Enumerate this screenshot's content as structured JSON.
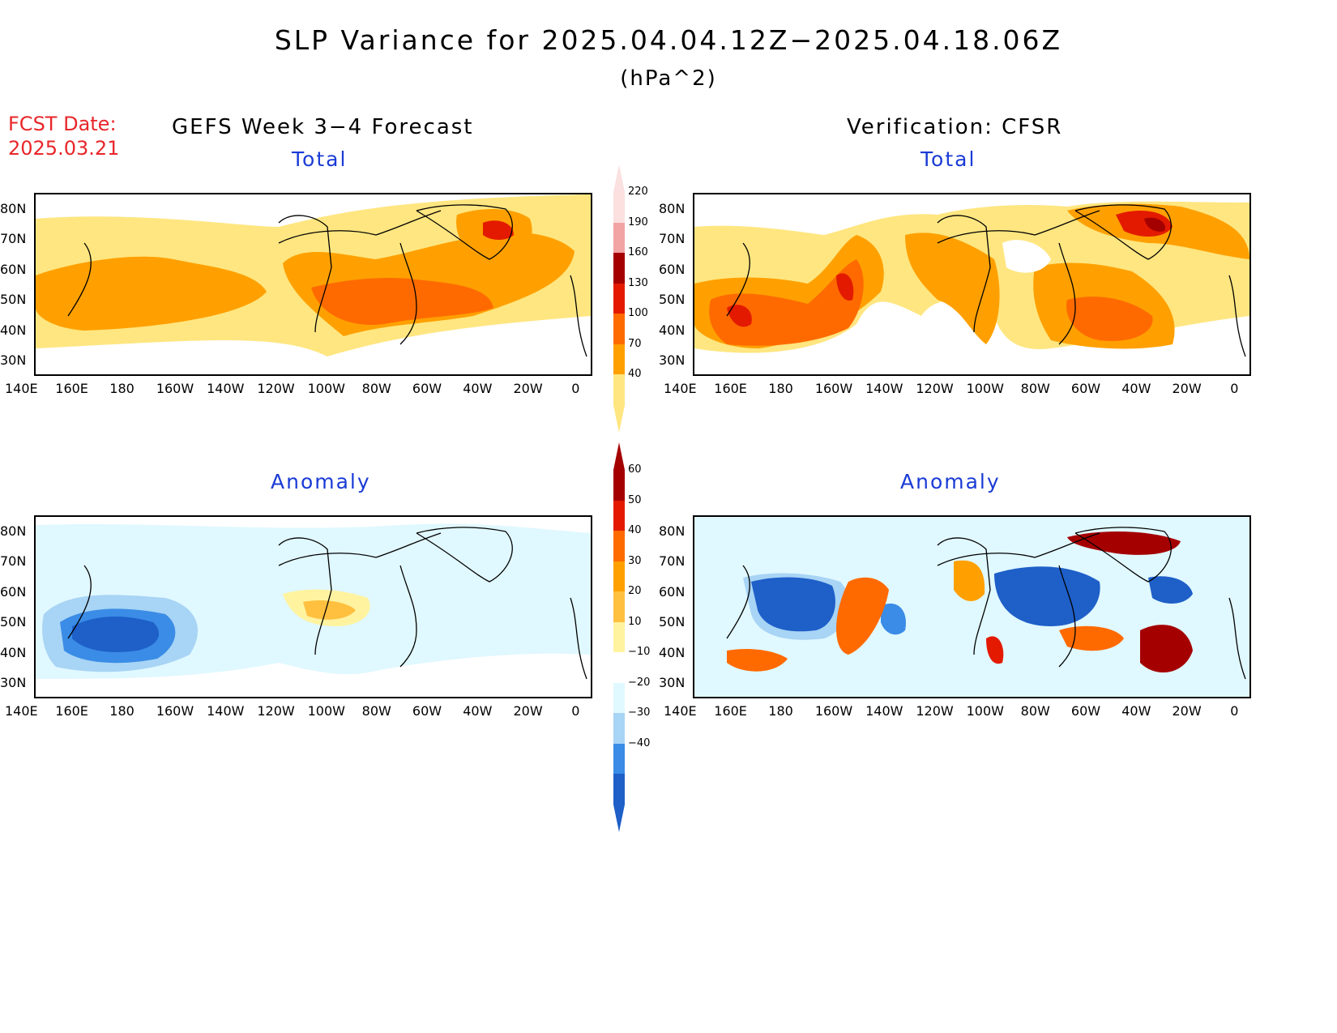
{
  "header": {
    "title": "SLP Variance for 2025.04.04.12Z−2025.04.18.06Z",
    "units": "(hPa^2)",
    "fcst_label": "FCST Date:",
    "fcst_date": "2025.03.21",
    "left_column": "GEFS Week 3−4 Forecast",
    "right_column": "Verification: CFSR"
  },
  "panels": {
    "top_left_title": "Total",
    "top_right_title": "Total",
    "bottom_left_title": "Anomaly",
    "bottom_right_title": "Anomaly"
  },
  "axes": {
    "lat_labels": [
      "80N",
      "70N",
      "60N",
      "50N",
      "40N",
      "30N"
    ],
    "lon_labels": [
      "140E",
      "160E",
      "180",
      "160W",
      "140W",
      "120W",
      "100W",
      "80W",
      "60W",
      "40W",
      "20W",
      "0"
    ]
  },
  "colorbar_total": {
    "labels": [
      "220",
      "190",
      "160",
      "130",
      "100",
      "70",
      "40"
    ],
    "colors": [
      "#fbe0e0",
      "#f2a3a3",
      "#a50000",
      "#e31a00",
      "#ff6a00",
      "#ffa000",
      "#ffe680"
    ]
  },
  "colorbar_anomaly": {
    "labels": [
      "60",
      "50",
      "40",
      "30",
      "20",
      "10",
      "−10",
      "−20",
      "−30",
      "−40"
    ],
    "colors": [
      "#a50000",
      "#e31a00",
      "#ff6a00",
      "#ffa000",
      "#ffc040",
      "#fff3a0",
      "#ffffff",
      "#e0f8ff",
      "#a8d4f5",
      "#3a8ce6",
      "#1e5fc8"
    ]
  }
}
